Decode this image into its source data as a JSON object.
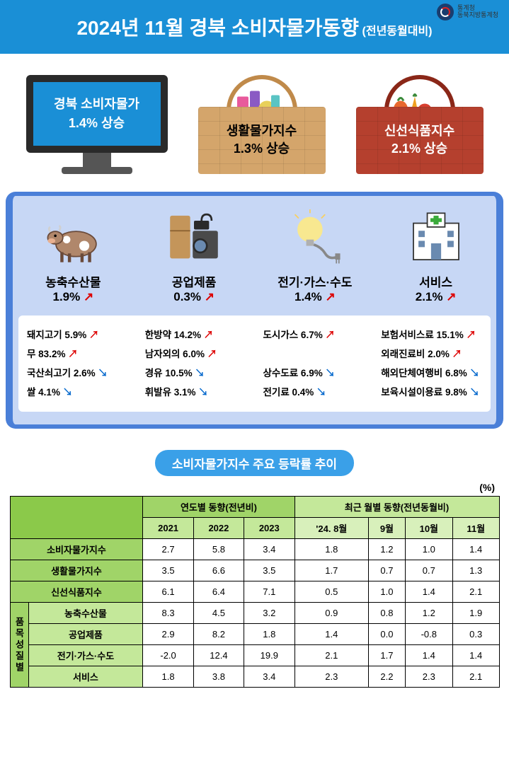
{
  "header": {
    "logo_text1": "통계청",
    "logo_text2": "동북지방통계청",
    "title_main": "2024년 11월 경북 소비자물가동향",
    "title_sub": "(전년동월대비)"
  },
  "top": {
    "monitor_line1": "경북 소비자물가",
    "monitor_line2": "1.4% 상승",
    "basket1_line1": "생활물가지수",
    "basket1_line2": "1.3% 상승",
    "basket2_line1": "신선식품지수",
    "basket2_line2": "2.1% 상승"
  },
  "colors": {
    "header_bg": "#1a8fd6",
    "mid_bg": "#c7d7f5",
    "mid_border": "#4a7fd8",
    "up": "#d00000",
    "down": "#0066cc",
    "basket1": "#d4a56b",
    "basket2": "#b5402e"
  },
  "categories": [
    {
      "title": "농축수산물",
      "value": "1.9%",
      "dir": "up"
    },
    {
      "title": "공업제품",
      "value": "0.3%",
      "dir": "up"
    },
    {
      "title": "전기·가스·수도",
      "value": "1.4%",
      "dir": "up"
    },
    {
      "title": "서비스",
      "value": "2.1%",
      "dir": "up"
    }
  ],
  "details": [
    [
      {
        "label": "돼지고기 5.9%",
        "dir": "up"
      },
      {
        "label": "무 83.2%",
        "dir": "up"
      },
      {
        "label": "국산쇠고기 2.6%",
        "dir": "down"
      },
      {
        "label": "쌀 4.1%",
        "dir": "down"
      }
    ],
    [
      {
        "label": "한방약 14.2%",
        "dir": "up"
      },
      {
        "label": "남자외의 6.0%",
        "dir": "up"
      },
      {
        "label": "경유 10.5%",
        "dir": "down"
      },
      {
        "label": "휘발유 3.1%",
        "dir": "down"
      }
    ],
    [
      {
        "label": "도시가스 6.7%",
        "dir": "up"
      },
      {
        "label": "",
        "dir": ""
      },
      {
        "label": "상수도료 6.9%",
        "dir": "down"
      },
      {
        "label": "전기료 0.4%",
        "dir": "down"
      }
    ],
    [
      {
        "label": "보험서비스료 15.1%",
        "dir": "up"
      },
      {
        "label": "외래진료비 2.0%",
        "dir": "up"
      },
      {
        "label": "해외단체여행비 6.8%",
        "dir": "down"
      },
      {
        "label": "보육시설이용료 9.8%",
        "dir": "down"
      }
    ]
  ],
  "table": {
    "title": "소비자물가지수 주요 등락률 추이",
    "pct": "(%)",
    "h_yearly": "연도별 동향(전년비)",
    "h_monthly": "최근 월별 동향(전년동월비)",
    "years": [
      "2021",
      "2022",
      "2023"
    ],
    "months": [
      "'24. 8월",
      "9월",
      "10월",
      "11월"
    ],
    "vhead": "품목성질별",
    "rows": [
      {
        "label": "소비자물가지수",
        "vals": [
          "2.7",
          "5.8",
          "3.4",
          "1.8",
          "1.2",
          "1.0",
          "1.4"
        ],
        "cls": "row-label"
      },
      {
        "label": "생활물가지수",
        "vals": [
          "3.5",
          "6.6",
          "3.5",
          "1.7",
          "0.7",
          "0.7",
          "1.3"
        ],
        "cls": "row-label"
      },
      {
        "label": "신선식품지수",
        "vals": [
          "6.1",
          "6.4",
          "7.1",
          "0.5",
          "1.0",
          "1.4",
          "2.1"
        ],
        "cls": "row-label"
      },
      {
        "label": "농축수산물",
        "vals": [
          "8.3",
          "4.5",
          "3.2",
          "0.9",
          "0.8",
          "1.2",
          "1.9"
        ],
        "cls": "row-label2"
      },
      {
        "label": "공업제품",
        "vals": [
          "2.9",
          "8.2",
          "1.8",
          "1.4",
          "0.0",
          "-0.8",
          "0.3"
        ],
        "cls": "row-label2"
      },
      {
        "label": "전기·가스·수도",
        "vals": [
          "-2.0",
          "12.4",
          "19.9",
          "2.1",
          "1.7",
          "1.4",
          "1.4"
        ],
        "cls": "row-label2"
      },
      {
        "label": "서비스",
        "vals": [
          "1.8",
          "3.8",
          "3.4",
          "2.3",
          "2.2",
          "2.3",
          "2.1"
        ],
        "cls": "row-label2"
      }
    ]
  }
}
